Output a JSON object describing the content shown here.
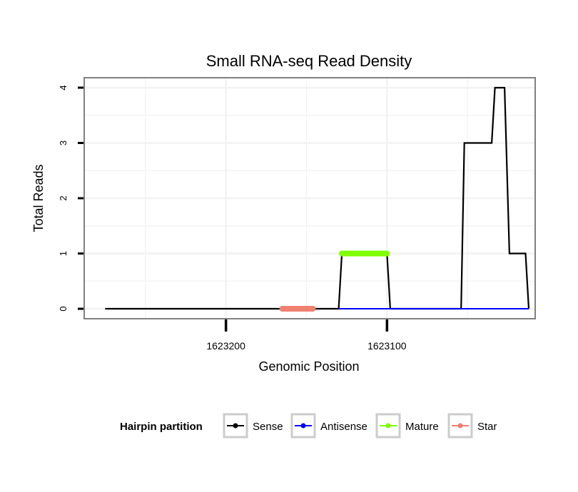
{
  "chart_data": {
    "type": "line",
    "title": "Small RNA-seq Read Density",
    "xlabel": "Genomic Position",
    "ylabel": "Total Reads",
    "x_reversed": true,
    "xlim": [
      1623288,
      1623008
    ],
    "ylim": [
      -0.18,
      4.18
    ],
    "xticks": [
      1623200,
      1623100
    ],
    "xtick_labels": [
      "1623200",
      "1623100"
    ],
    "yticks": [
      0,
      1,
      2,
      3,
      4
    ],
    "ytick_labels": [
      "0",
      "1",
      "2",
      "3",
      "4"
    ],
    "grid": true,
    "legend": {
      "title": "Hairpin partition",
      "position": "bottom",
      "items": [
        {
          "label": "Sense",
          "color": "#000000"
        },
        {
          "label": "Antisense",
          "color": "#0000ff"
        },
        {
          "label": "Mature",
          "color": "#7fff00"
        },
        {
          "label": "Star",
          "color": "#f08070"
        }
      ]
    },
    "series": [
      {
        "name": "Sense",
        "color": "#000000",
        "points": [
          [
            1623275,
            0
          ],
          [
            1623130,
            0
          ],
          [
            1623128,
            1
          ],
          [
            1623100,
            1
          ],
          [
            1623098,
            0
          ],
          [
            1623054,
            0
          ],
          [
            1623052,
            3
          ],
          [
            1623035,
            3
          ],
          [
            1623033,
            4
          ],
          [
            1623027,
            4
          ],
          [
            1623024,
            1
          ],
          [
            1623014,
            1
          ],
          [
            1623012,
            0
          ]
        ]
      },
      {
        "name": "Antisense",
        "color": "#0000ff",
        "points": [
          [
            1623130,
            0
          ],
          [
            1623012,
            0
          ]
        ]
      },
      {
        "name": "Mature",
        "color": "#7fff00",
        "points": [
          [
            1623128,
            1
          ],
          [
            1623100,
            1
          ]
        ]
      },
      {
        "name": "Star",
        "color": "#f08070",
        "points": [
          [
            1623165,
            0
          ],
          [
            1623146,
            0
          ]
        ]
      }
    ]
  }
}
